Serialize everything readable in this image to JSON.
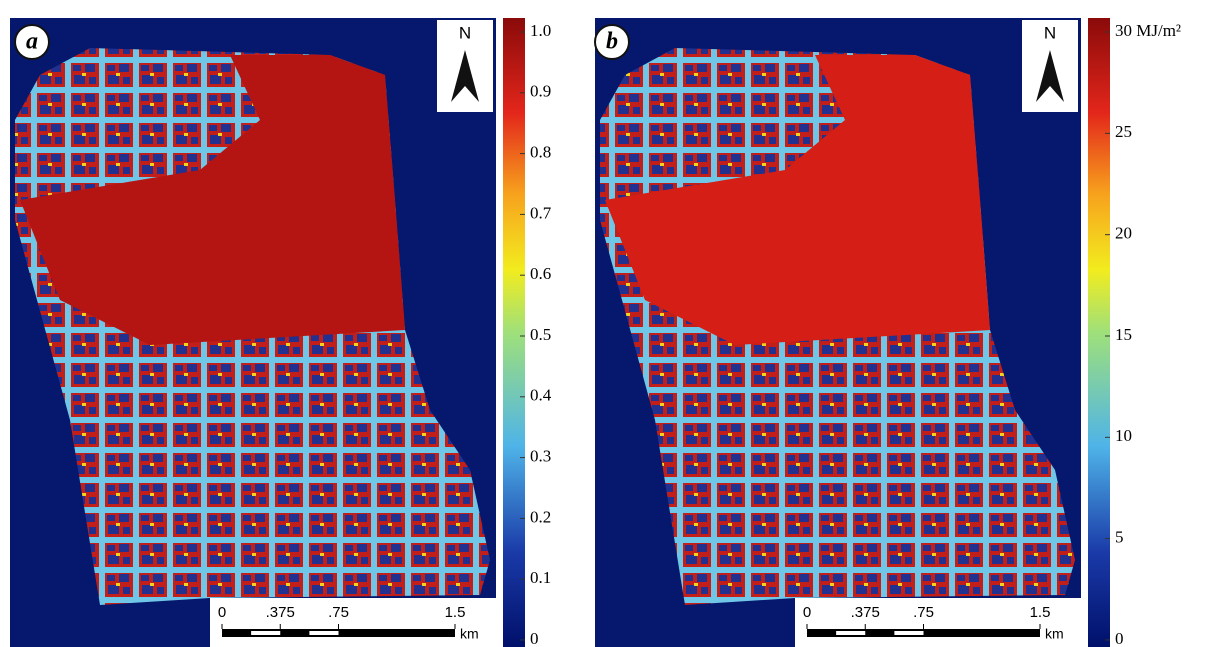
{
  "panels": [
    {
      "label": "a",
      "north": "N",
      "colorbar": {
        "lim": [
          0,
          1
        ],
        "ticks": [
          0,
          0.1,
          0.2,
          0.3,
          0.4,
          0.5,
          0.6,
          0.7,
          0.8,
          0.9,
          {
            "value": 1,
            "label": "1.0"
          }
        ]
      },
      "scale_bar": {
        "lim": [
          0,
          1.5
        ],
        "ticks": [
          0,
          {
            "value": 0.375,
            "label": ".375"
          },
          {
            "value": 0.75,
            "label": ".75"
          },
          1.5
        ],
        "unit": "km"
      }
    },
    {
      "label": "b",
      "north": "N",
      "colorbar": {
        "lim": [
          0,
          30
        ],
        "ticks": [
          0,
          5,
          10,
          15,
          20,
          25,
          {
            "value": 30,
            "label": "30 MJ/m²"
          }
        ]
      },
      "scale_bar": {
        "lim": [
          0,
          1.5
        ],
        "ticks": [
          0,
          {
            "value": 0.375,
            "label": ".375"
          },
          {
            "value": 0.75,
            "label": ".75"
          },
          1.5
        ],
        "unit": "km"
      }
    }
  ]
}
